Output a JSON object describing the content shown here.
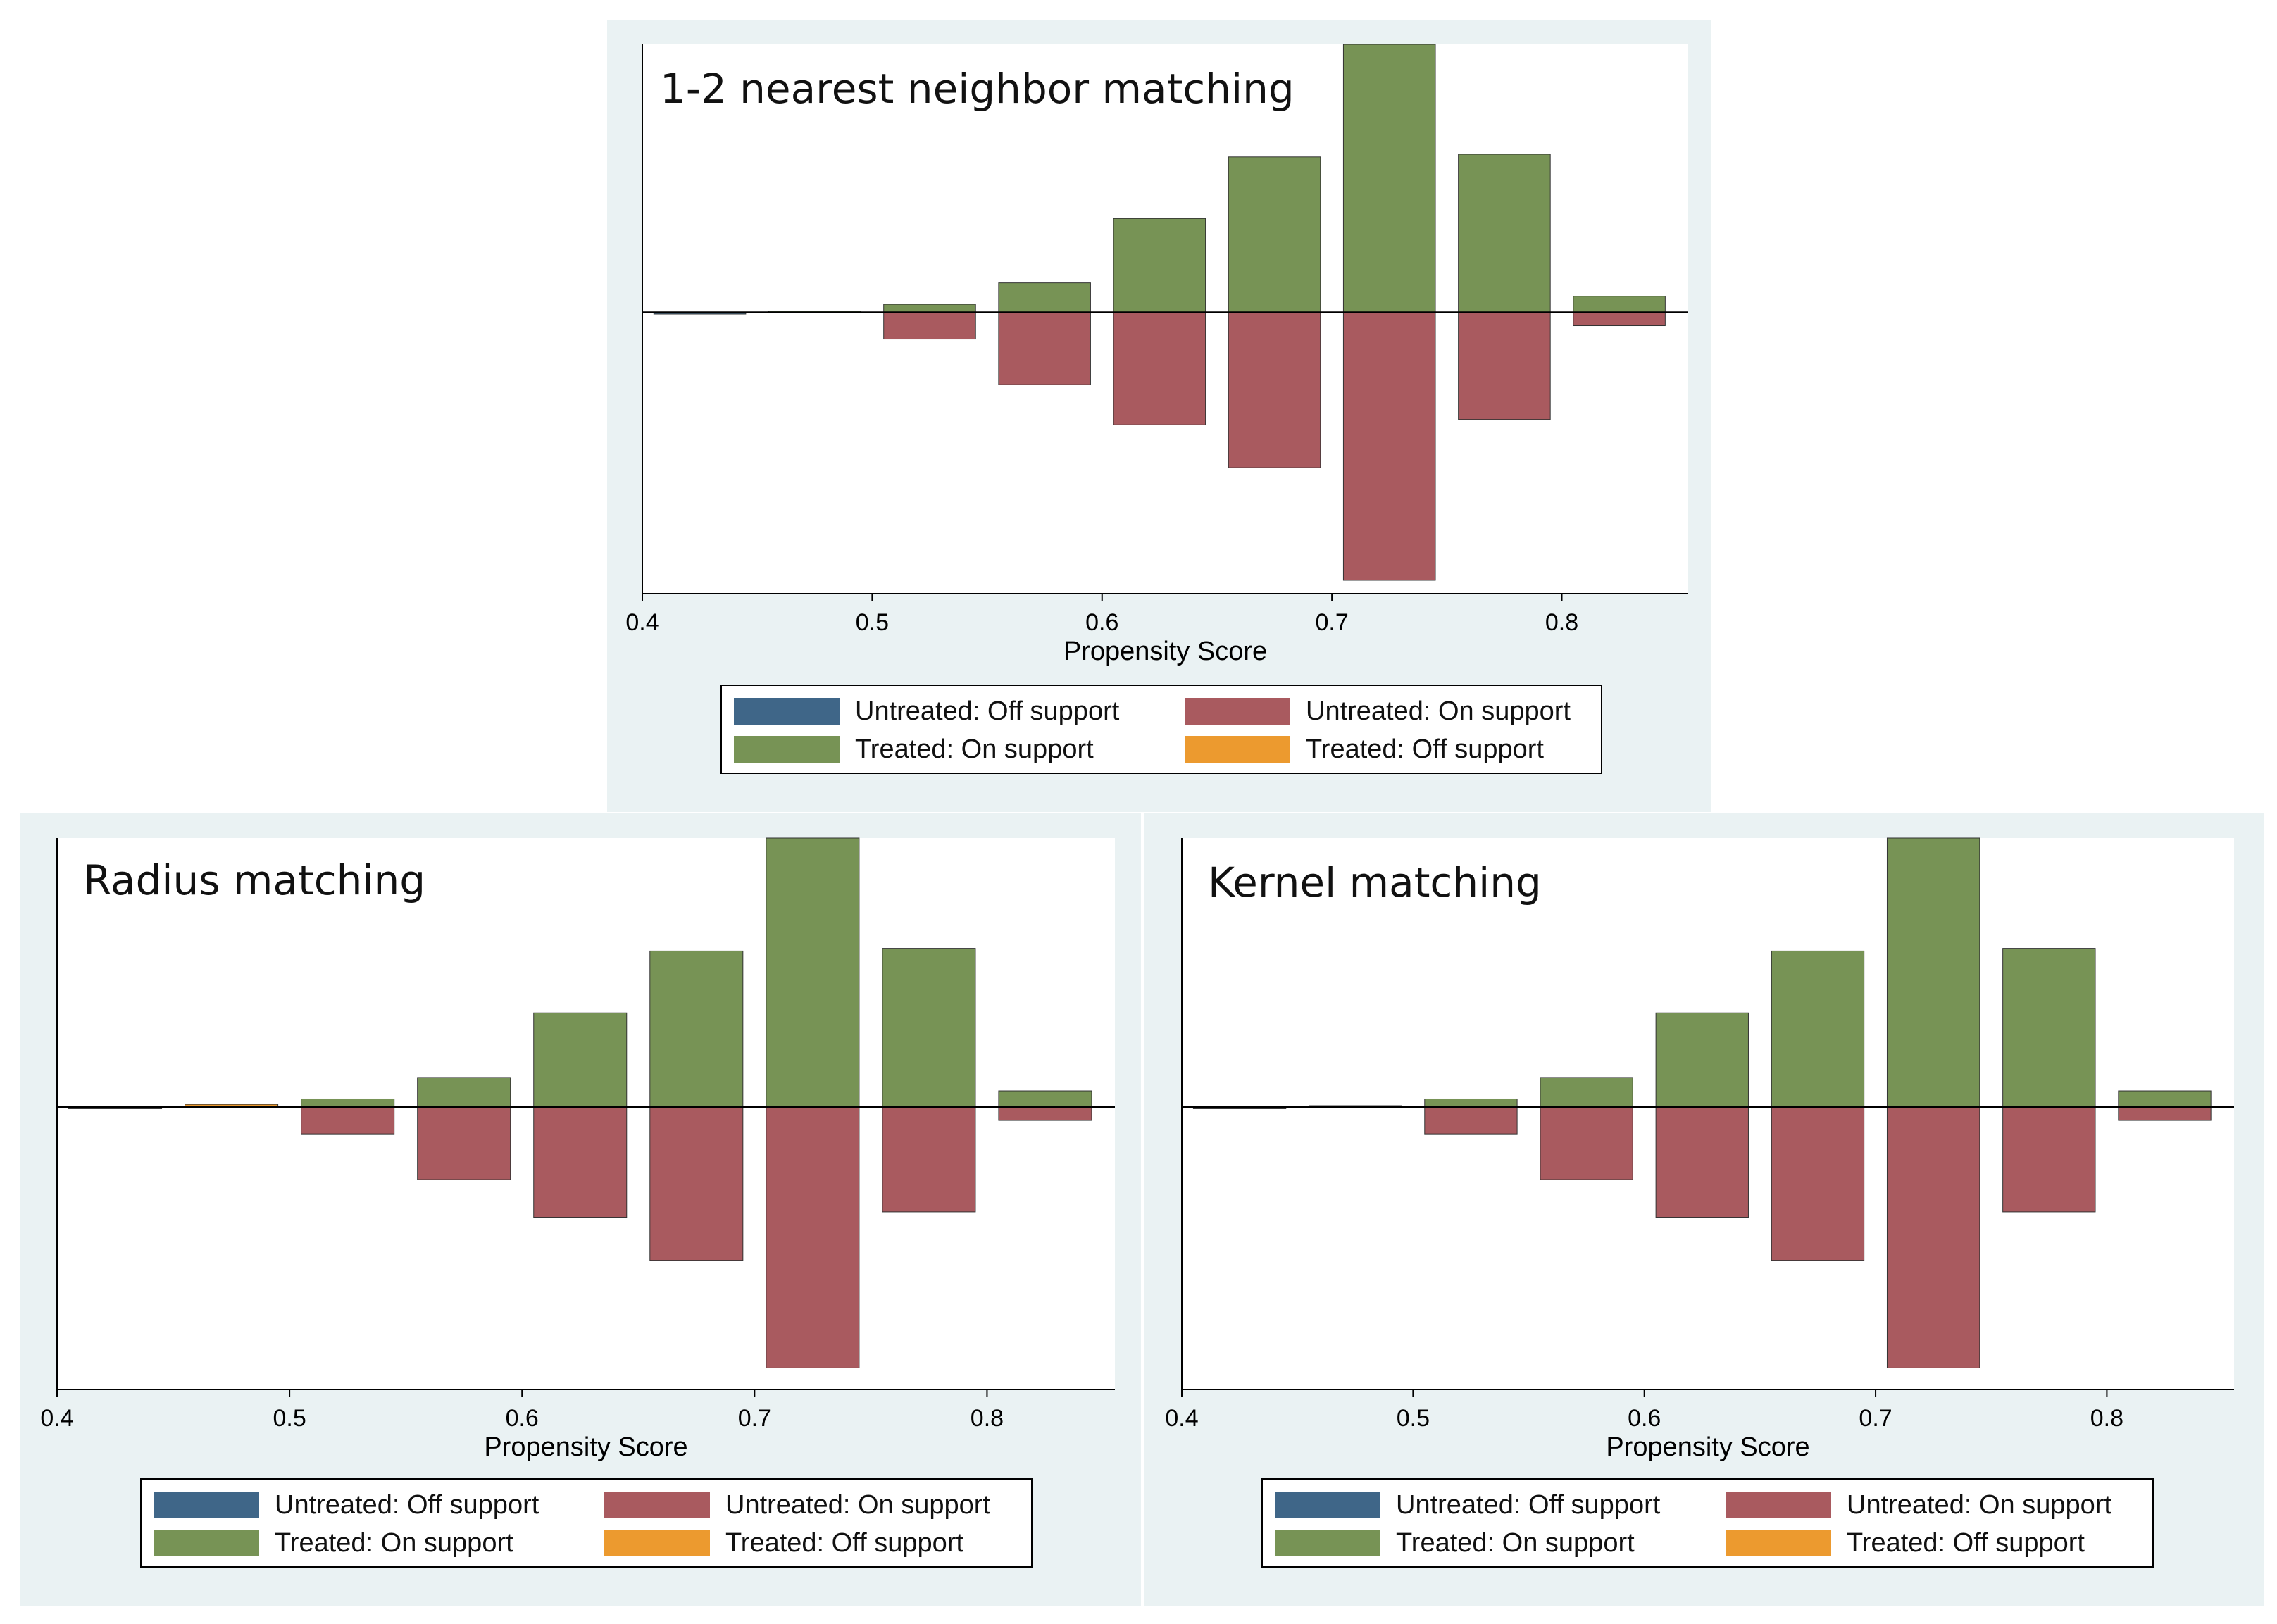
{
  "colors": {
    "untreated_off": "#3f6688",
    "untreated_on": "#a95a5f",
    "treated_on": "#779355",
    "treated_off": "#ec9a2f"
  },
  "chart_data": [
    {
      "type": "bar",
      "title": "1-2 nearest neighbor matching",
      "xlabel": "Propensity Score",
      "xticks": [
        "0.4",
        "0.5",
        "0.6",
        "0.7",
        "0.8"
      ],
      "xlim": [
        0.4,
        0.855
      ],
      "ylim": [
        -1.05,
        1.0
      ],
      "bin_centers": [
        0.425,
        0.475,
        0.525,
        0.575,
        0.625,
        0.675,
        0.725,
        0.775,
        0.825
      ],
      "bin_width": 0.04,
      "series": [
        {
          "name": "Untreated: Off support",
          "key": "untreated_off",
          "direction": "down",
          "values": [
            0.005,
            0,
            0,
            0,
            0,
            0,
            0,
            0,
            0
          ]
        },
        {
          "name": "Untreated: On support",
          "key": "untreated_on",
          "direction": "down",
          "values": [
            0,
            0,
            0.1,
            0.27,
            0.42,
            0.58,
            1.0,
            0.4,
            0.05
          ]
        },
        {
          "name": "Treated: On support",
          "key": "treated_on",
          "direction": "up",
          "values": [
            0,
            0.005,
            0.03,
            0.11,
            0.35,
            0.58,
            1.0,
            0.59,
            0.06
          ]
        },
        {
          "name": "Treated: Off support",
          "key": "treated_off",
          "direction": "up",
          "values": [
            0,
            0,
            0,
            0,
            0,
            0,
            0,
            0,
            0
          ]
        }
      ],
      "legend": [
        "Untreated: Off support",
        "Untreated: On support",
        "Treated: On support",
        "Treated: Off support"
      ]
    },
    {
      "type": "bar",
      "title": "Radius matching",
      "xlabel": "Propensity Score",
      "xticks": [
        "0.4",
        "0.5",
        "0.6",
        "0.7",
        "0.8"
      ],
      "xlim": [
        0.4,
        0.855
      ],
      "ylim": [
        -1.05,
        1.0
      ],
      "bin_centers": [
        0.425,
        0.475,
        0.525,
        0.575,
        0.625,
        0.675,
        0.725,
        0.775,
        0.825
      ],
      "bin_width": 0.04,
      "series": [
        {
          "name": "Untreated: Off support",
          "key": "untreated_off",
          "direction": "down",
          "values": [
            0.005,
            0,
            0,
            0,
            0,
            0,
            0,
            0,
            0
          ]
        },
        {
          "name": "Untreated: On support",
          "key": "untreated_on",
          "direction": "down",
          "values": [
            0,
            0,
            0.1,
            0.27,
            0.41,
            0.57,
            0.97,
            0.39,
            0.05
          ]
        },
        {
          "name": "Treated: On support",
          "key": "treated_on",
          "direction": "up",
          "values": [
            0,
            0,
            0.03,
            0.11,
            0.35,
            0.58,
            1.0,
            0.59,
            0.06
          ]
        },
        {
          "name": "Treated: Off support",
          "key": "treated_off",
          "direction": "up",
          "values": [
            0,
            0.01,
            0,
            0,
            0,
            0,
            0,
            0,
            0
          ]
        }
      ],
      "legend": [
        "Untreated: Off support",
        "Untreated: On support",
        "Treated: On support",
        "Treated: Off support"
      ]
    },
    {
      "type": "bar",
      "title": "Kernel matching",
      "xlabel": "Propensity Score",
      "xticks": [
        "0.4",
        "0.5",
        "0.6",
        "0.7",
        "0.8"
      ],
      "xlim": [
        0.4,
        0.855
      ],
      "ylim": [
        -1.05,
        1.0
      ],
      "bin_centers": [
        0.425,
        0.475,
        0.525,
        0.575,
        0.625,
        0.675,
        0.725,
        0.775,
        0.825
      ],
      "bin_width": 0.04,
      "series": [
        {
          "name": "Untreated: Off support",
          "key": "untreated_off",
          "direction": "down",
          "values": [
            0.005,
            0,
            0,
            0,
            0,
            0,
            0,
            0,
            0
          ]
        },
        {
          "name": "Untreated: On support",
          "key": "untreated_on",
          "direction": "down",
          "values": [
            0,
            0,
            0.1,
            0.27,
            0.41,
            0.57,
            0.97,
            0.39,
            0.05
          ]
        },
        {
          "name": "Treated: On support",
          "key": "treated_on",
          "direction": "up",
          "values": [
            0,
            0.005,
            0.03,
            0.11,
            0.35,
            0.58,
            1.0,
            0.59,
            0.06
          ]
        },
        {
          "name": "Treated: Off support",
          "key": "treated_off",
          "direction": "up",
          "values": [
            0,
            0,
            0,
            0,
            0,
            0,
            0,
            0,
            0
          ]
        }
      ],
      "legend": [
        "Untreated: Off support",
        "Untreated: On support",
        "Treated: On support",
        "Treated: Off support"
      ]
    }
  ]
}
